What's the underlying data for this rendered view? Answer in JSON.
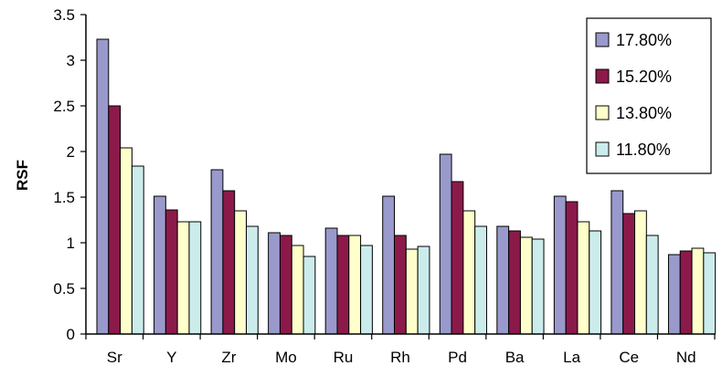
{
  "chart_data": {
    "type": "bar",
    "title": "",
    "xlabel": "",
    "ylabel": "RSF",
    "ylim": [
      0,
      3.5
    ],
    "yticks": [
      "0",
      "0.5",
      "1",
      "1.5",
      "2",
      "2.5",
      "3",
      "3.5"
    ],
    "grid": false,
    "legend_position": "top-right",
    "categories": [
      "Sr",
      "Y",
      "Zr",
      "Mo",
      "Ru",
      "Rh",
      "Pd",
      "Ba",
      "La",
      "Ce",
      "Nd"
    ],
    "series": [
      {
        "name": "17.80%",
        "color": "#9999cc",
        "values": [
          3.23,
          1.51,
          1.8,
          1.11,
          1.16,
          1.51,
          1.97,
          1.18,
          1.51,
          1.57,
          0.87
        ]
      },
      {
        "name": "15.20%",
        "color": "#8b1a4a",
        "values": [
          2.5,
          1.36,
          1.57,
          1.08,
          1.08,
          1.08,
          1.67,
          1.13,
          1.45,
          1.32,
          0.91
        ]
      },
      {
        "name": "13.80%",
        "color": "#ffffcc",
        "values": [
          2.04,
          1.23,
          1.35,
          0.97,
          1.08,
          0.93,
          1.35,
          1.06,
          1.23,
          1.35,
          0.94
        ]
      },
      {
        "name": "11.80%",
        "color": "#ccecec",
        "values": [
          1.84,
          1.23,
          1.18,
          0.85,
          0.97,
          0.96,
          1.18,
          1.04,
          1.13,
          1.08,
          0.89
        ]
      }
    ]
  }
}
